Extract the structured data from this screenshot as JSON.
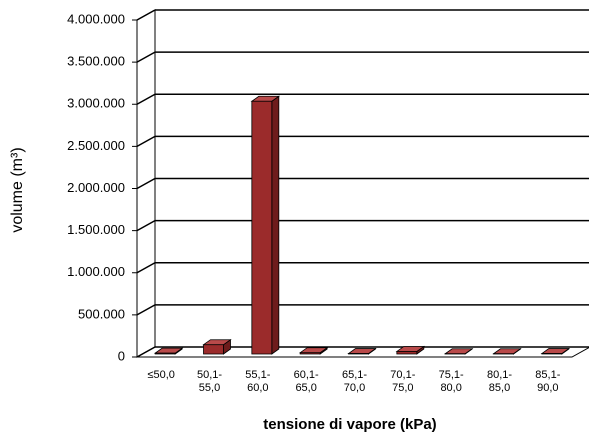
{
  "chart_data": {
    "type": "bar3d",
    "x_label": "tensione di vapore (kPa)",
    "y_label": "volume (m³)",
    "categories": [
      "≤50,0",
      "50,1-55,0",
      "55,1-60,0",
      "60,1-65,0",
      "65,1-70,0",
      "70,1-75,0",
      "75,1-80,0",
      "80,1-85,0",
      "85,1-90,0"
    ],
    "values": [
      10000,
      110000,
      3000000,
      15000,
      5000,
      30000,
      3000,
      3000,
      5000
    ],
    "color": "#9b2b2b",
    "ylim": [
      0,
      4000000
    ],
    "yticks": [
      0,
      {
        "value": 500000,
        "label": "500.000"
      },
      {
        "value": 1000000,
        "label": "1.000.000"
      },
      {
        "value": 1500000,
        "label": "1.500.000"
      },
      {
        "value": 2000000,
        "label": "2.000.000"
      },
      {
        "value": 2500000,
        "label": "2.500.000"
      },
      {
        "value": 3000000,
        "label": "3.000.000"
      },
      {
        "value": 3500000,
        "label": "3.500.000"
      },
      {
        "value": 4000000,
        "label": "4.000.000"
      }
    ],
    "grid": true
  }
}
